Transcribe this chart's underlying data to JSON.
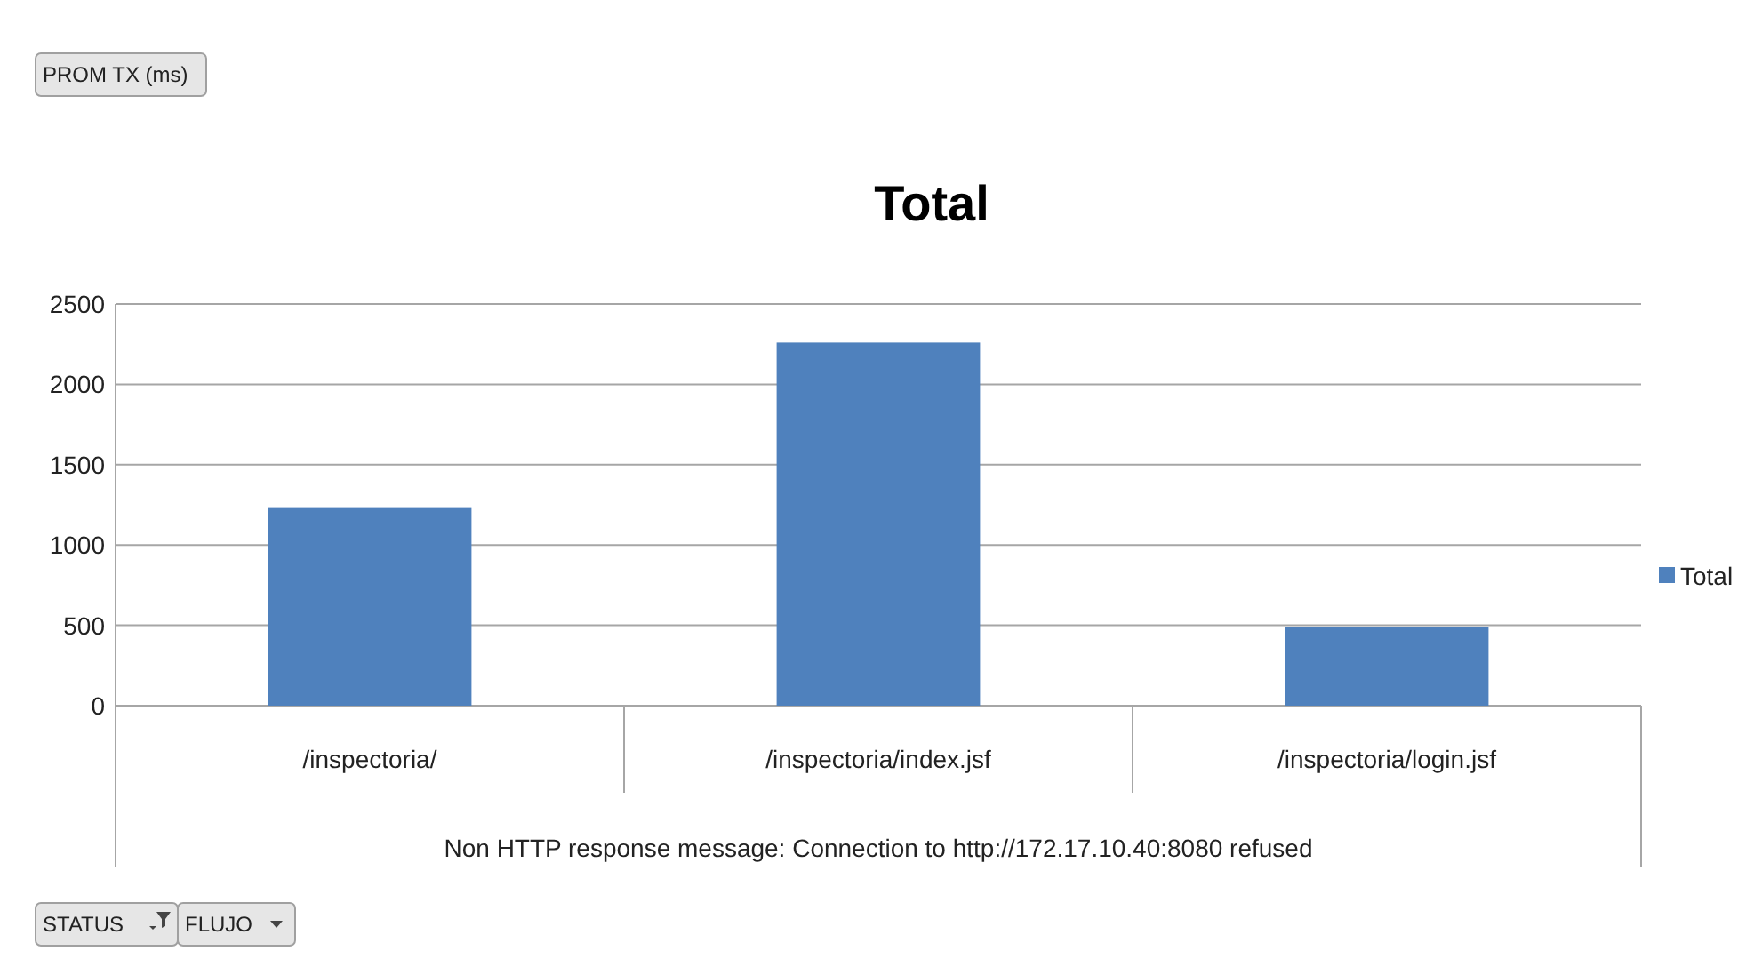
{
  "chart_data": {
    "type": "bar",
    "title": "Total",
    "categories": [
      "/inspectoria/",
      "/inspectoria/index.jsf",
      "/inspectoria/login.jsf"
    ],
    "xlabel": "Non HTTP response message: Connection to http://172.17.10.40:8080 refused",
    "series": [
      {
        "name": "Total",
        "color": "#4f81bd",
        "values": [
          1230,
          2260,
          490
        ]
      }
    ],
    "ylim": [
      0,
      2500
    ],
    "yticks": [
      0,
      500,
      1000,
      1500,
      2000,
      2500
    ],
    "grid": "y",
    "legend": "right",
    "annotations": [
      "PROM TX (ms)",
      "STATUS",
      "FLUJO"
    ]
  }
}
